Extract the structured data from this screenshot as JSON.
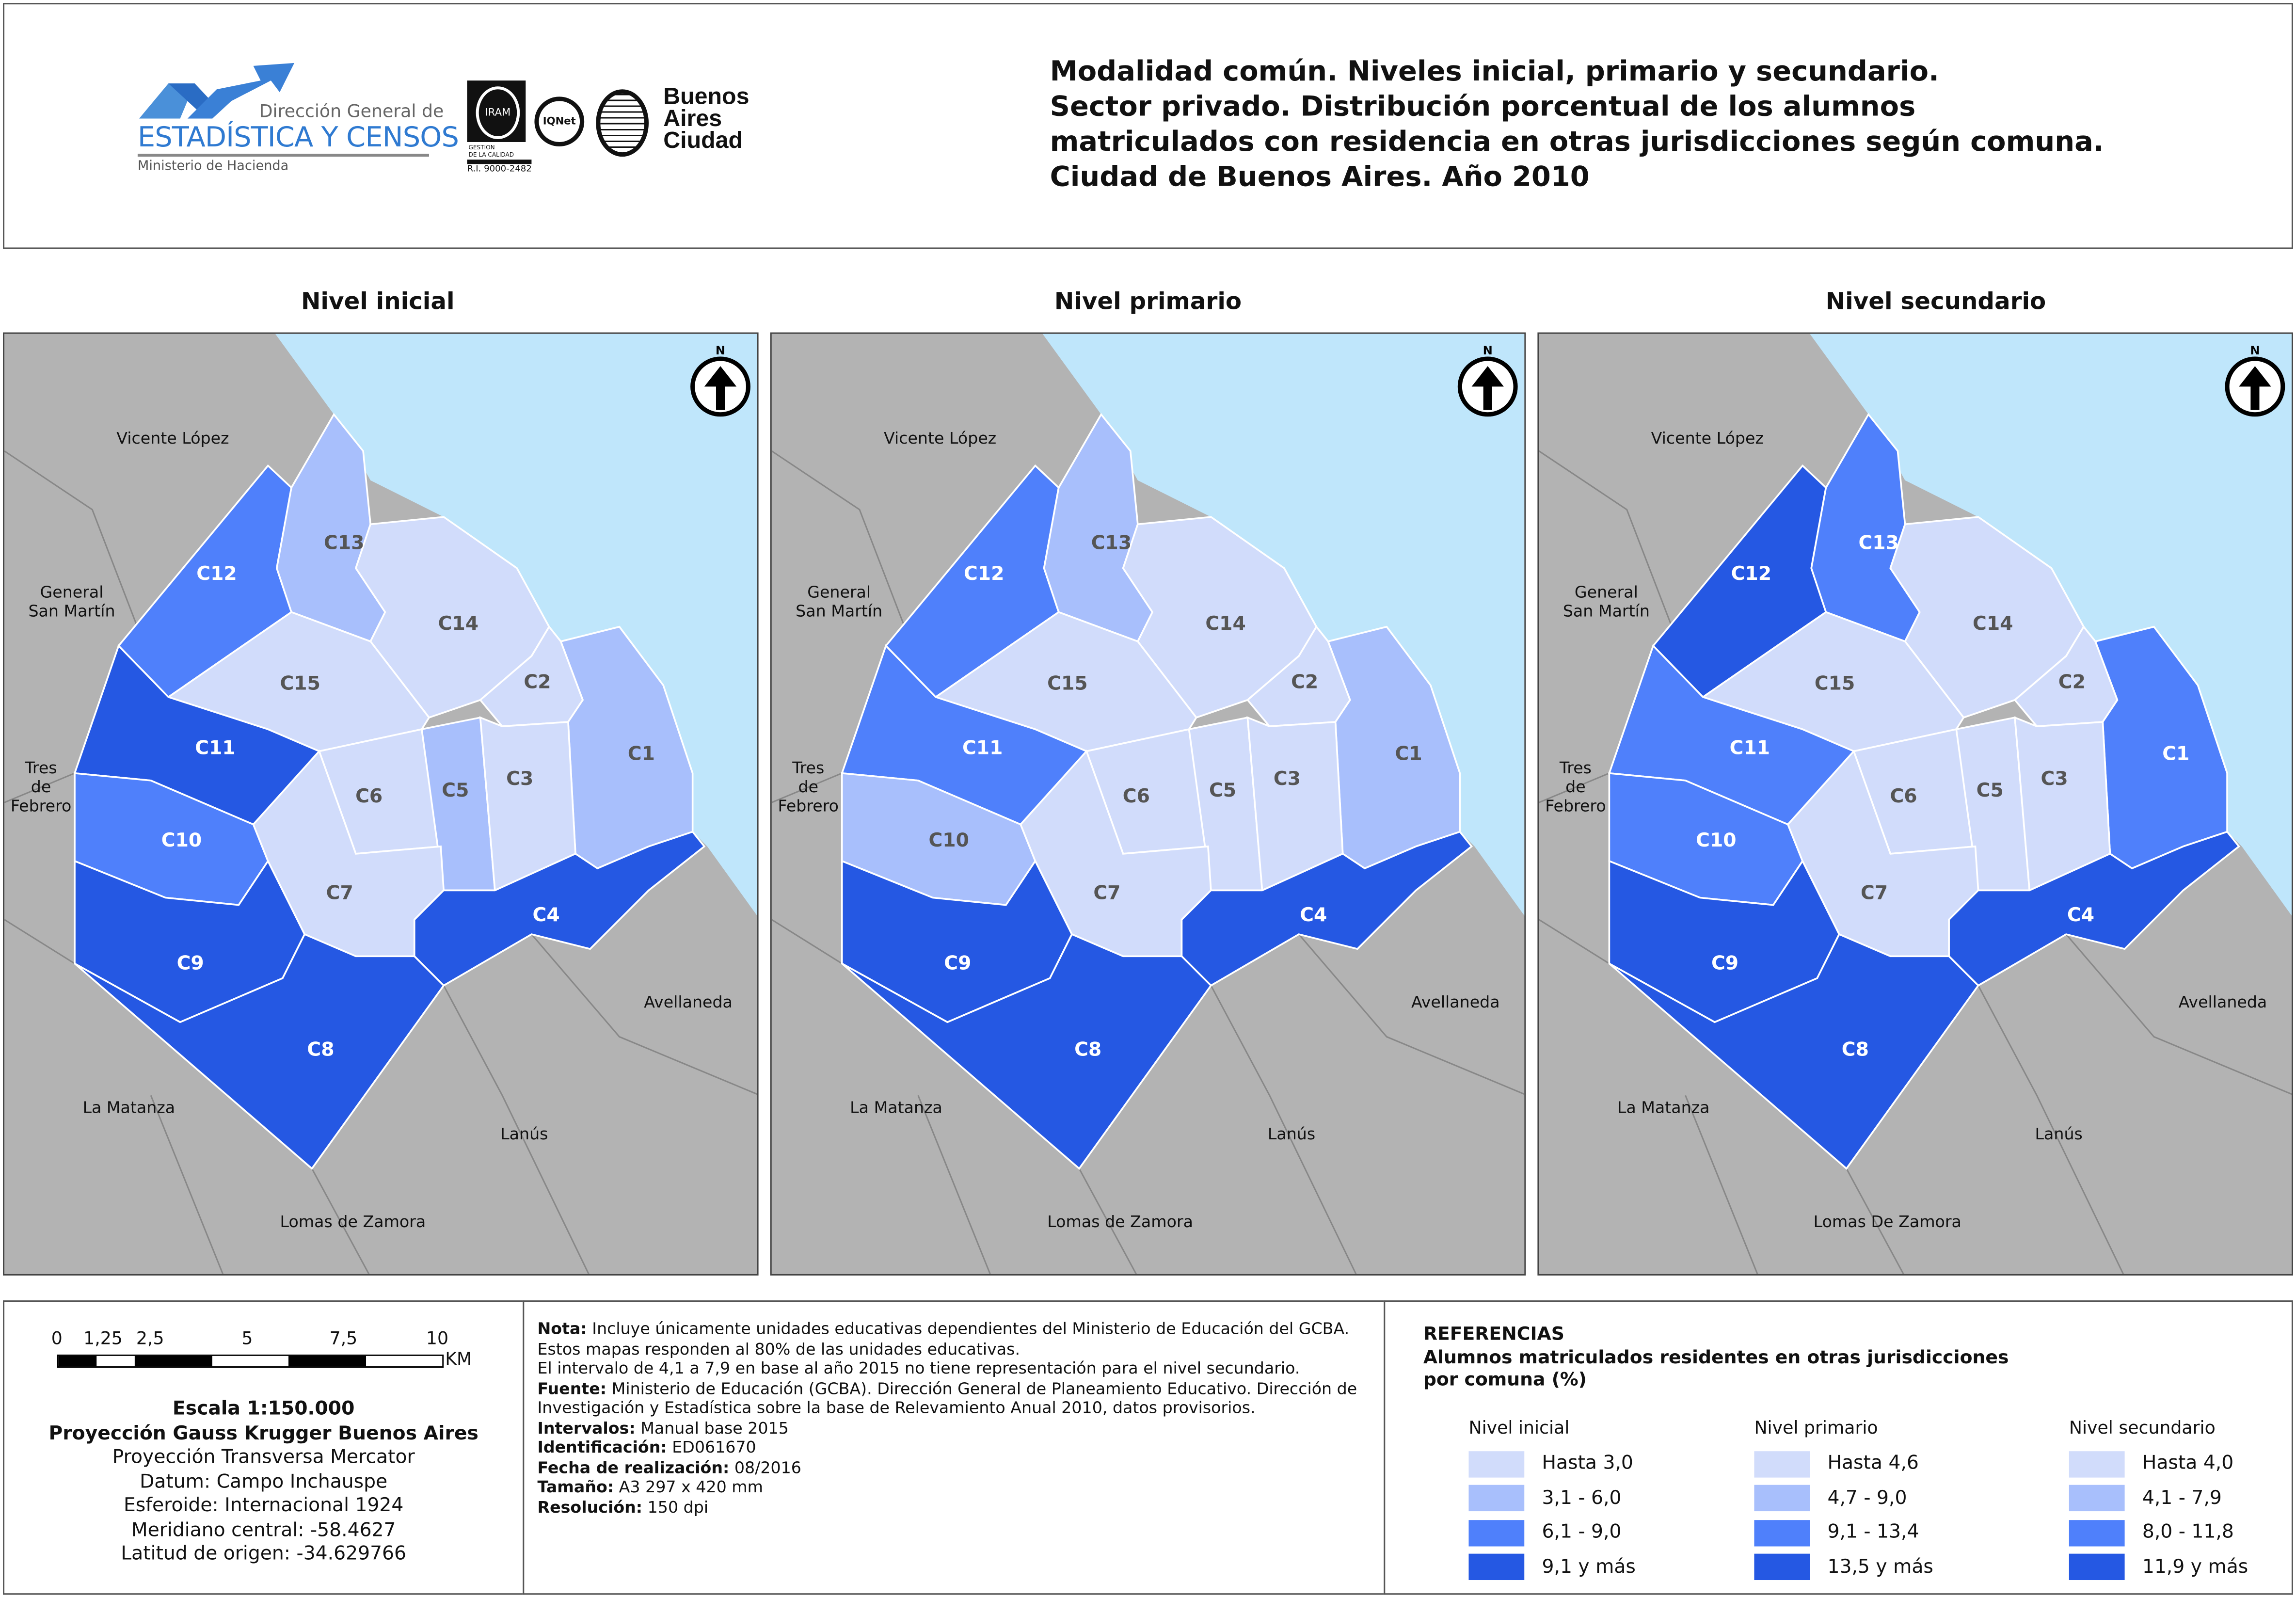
{
  "header": {
    "logo_dgec": {
      "line1": "Dirección General de",
      "line2": "ESTADÍSTICA Y CENSOS",
      "line3": "Ministerio de Hacienda"
    },
    "logo_iram": {
      "seal": "IRAM",
      "text1": "GESTION",
      "text2": "DE LA CALIDAD",
      "code": "R.I. 9000-2482"
    },
    "logo_iqnet": {
      "text": "IQNet"
    },
    "logo_ba": {
      "line1": "Buenos",
      "line2": "Aires",
      "line3": "Ciudad"
    },
    "title_lines": [
      "Modalidad común. Niveles inicial, primario y secundario.",
      "Sector privado. Distribución porcentual de los alumnos",
      "matriculados con residencia en otras jurisdicciones según comuna.",
      "Ciudad de Buenos Aires. Año 2010"
    ]
  },
  "colors": {
    "classes": [
      "#d1dcfb",
      "#a8bffc",
      "#4f80fb",
      "#2558e3"
    ],
    "water": "#bfe6fb",
    "land": "#b3b3b3"
  },
  "north_label": "N",
  "maps": [
    {
      "title": "Nivel inicial",
      "classes": {
        "C1": 1,
        "C2": 0,
        "C3": 0,
        "C4": 3,
        "C5": 1,
        "C6": 0,
        "C7": 0,
        "C8": 3,
        "C9": 3,
        "C10": 2,
        "C11": 3,
        "C12": 2,
        "C13": 1,
        "C14": 0,
        "C15": 0
      },
      "neighbors": [
        "Vicente López",
        "General\nSan Martín",
        "Tres\nde\nFebrero",
        "La Matanza",
        "Lomas de Zamora",
        "Lanús",
        "Avellaneda"
      ]
    },
    {
      "title": "Nivel primario",
      "classes": {
        "C1": 1,
        "C2": 0,
        "C3": 0,
        "C4": 3,
        "C5": 0,
        "C6": 0,
        "C7": 0,
        "C8": 3,
        "C9": 3,
        "C10": 1,
        "C11": 2,
        "C12": 2,
        "C13": 1,
        "C14": 0,
        "C15": 0
      },
      "neighbors": [
        "Vicente López",
        "General\nSan Martín",
        "Tres\nde\nFebrero",
        "La Matanza",
        "Lomas de Zamora",
        "Lanús",
        "Avellaneda"
      ]
    },
    {
      "title": "Nivel secundario",
      "classes": {
        "C1": 2,
        "C2": 0,
        "C3": 0,
        "C4": 3,
        "C5": 0,
        "C6": 0,
        "C7": 0,
        "C8": 3,
        "C9": 3,
        "C10": 2,
        "C11": 2,
        "C12": 3,
        "C13": 2,
        "C14": 0,
        "C15": 0
      },
      "neighbors": [
        "Vicente López",
        "General\nSan Martín",
        "Tres\nde\nFebrero",
        "La Matanza",
        "Lomas De Zamora",
        "Lanús",
        "Avellaneda"
      ]
    }
  ],
  "scale": {
    "ticks": [
      "0",
      "1,25",
      "2,5",
      "5",
      "7,5",
      "10"
    ],
    "unit": "KM",
    "lines": [
      "Escala 1:150.000",
      "Proyección Gauss Krugger Buenos Aires",
      "Proyección Transversa Mercator",
      "Datum: Campo Inchauspe",
      "Esferoide: Internacional 1924",
      "Meridiano central: -58.4627",
      "Latitud de origen: -34.629766"
    ]
  },
  "notes": [
    {
      "k": "Nota:",
      "v": " Incluye únicamente unidades educativas dependientes del Ministerio de Educación del GCBA."
    },
    {
      "k": "",
      "v": "Estos mapas responden al 80% de las unidades educativas."
    },
    {
      "k": "",
      "v": "El intervalo de 4,1 a 7,9 en base al año 2015 no tiene representación para el nivel secundario."
    },
    {
      "k": "Fuente:",
      "v": " Ministerio de Educación (GCBA). Dirección General de Planeamiento Educativo. Dirección de"
    },
    {
      "k": "",
      "v": "Investigación y Estadística sobre la base de Relevamiento Anual 2010, datos provisorios."
    },
    {
      "k": "Intervalos:",
      "v": " Manual base 2015"
    },
    {
      "k": "Identificación:",
      "v": " ED061670"
    },
    {
      "k": "Fecha de realización:",
      "v": " 08/2016"
    },
    {
      "k": "Tamaño:",
      "v": " A3 297 x 420 mm"
    },
    {
      "k": "Resolución:",
      "v": " 150 dpi"
    }
  ],
  "legend": {
    "heading": "REFERENCIAS",
    "subtitle1": "Alumnos matriculados residentes en otras jurisdicciones",
    "subtitle2": "por comuna (%)",
    "columns": [
      {
        "title": "Nivel inicial",
        "items": [
          "Hasta 3,0",
          "3,1 - 6,0",
          "6,1 - 9,0",
          "9,1 y más"
        ]
      },
      {
        "title": "Nivel primario",
        "items": [
          "Hasta 4,6",
          "4,7 - 9,0",
          "9,1 - 13,4",
          "13,5 y más"
        ]
      },
      {
        "title": "Nivel secundario",
        "items": [
          "Hasta 4,0",
          "4,1 - 7,9",
          "8,0 - 11,8",
          "11,9 y más"
        ]
      }
    ]
  }
}
